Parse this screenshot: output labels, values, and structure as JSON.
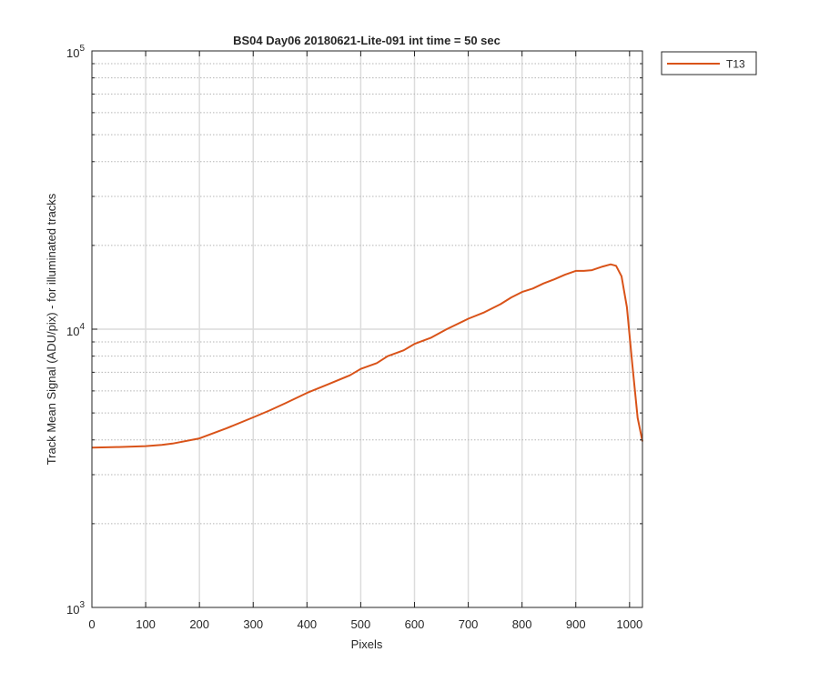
{
  "chart_data": {
    "type": "line",
    "title": "BS04 Day06 20180621-Lite-091 int time = 50 sec",
    "xlabel": "Pixels",
    "ylabel": "Track Mean Signal (ADU/pix) - for illuminated tracks",
    "xlim": [
      0,
      1024
    ],
    "ylim": [
      1000,
      100000
    ],
    "yscale": "log",
    "grid": true,
    "legend_position": "outside-top-right",
    "x_ticks": [
      0,
      100,
      200,
      300,
      400,
      500,
      600,
      700,
      800,
      900,
      1000
    ],
    "x_tick_labels": [
      "0",
      "100",
      "200",
      "300",
      "400",
      "500",
      "600",
      "700",
      "800",
      "900",
      "1000"
    ],
    "y_ticks": [
      1000,
      10000,
      100000
    ],
    "y_tick_labels": [
      {
        "base": "10",
        "exp": "3"
      },
      {
        "base": "10",
        "exp": "4"
      },
      {
        "base": "10",
        "exp": "5"
      }
    ],
    "series": [
      {
        "name": "T13",
        "color": "#D95319",
        "points": [
          [
            0,
            3750
          ],
          [
            50,
            3770
          ],
          [
            100,
            3800
          ],
          [
            130,
            3840
          ],
          [
            150,
            3880
          ],
          [
            200,
            4050
          ],
          [
            250,
            4400
          ],
          [
            300,
            4820
          ],
          [
            330,
            5100
          ],
          [
            360,
            5420
          ],
          [
            400,
            5900
          ],
          [
            440,
            6350
          ],
          [
            480,
            6830
          ],
          [
            500,
            7200
          ],
          [
            530,
            7550
          ],
          [
            550,
            8000
          ],
          [
            580,
            8400
          ],
          [
            600,
            8850
          ],
          [
            630,
            9300
          ],
          [
            660,
            10000
          ],
          [
            700,
            10900
          ],
          [
            730,
            11500
          ],
          [
            760,
            12300
          ],
          [
            780,
            13000
          ],
          [
            800,
            13600
          ],
          [
            820,
            14000
          ],
          [
            840,
            14600
          ],
          [
            860,
            15100
          ],
          [
            880,
            15700
          ],
          [
            900,
            16200
          ],
          [
            915,
            16200
          ],
          [
            930,
            16300
          ],
          [
            950,
            16800
          ],
          [
            965,
            17100
          ],
          [
            975,
            16900
          ],
          [
            985,
            15500
          ],
          [
            995,
            12000
          ],
          [
            1005,
            7500
          ],
          [
            1015,
            4800
          ],
          [
            1024,
            3950
          ]
        ]
      }
    ]
  }
}
